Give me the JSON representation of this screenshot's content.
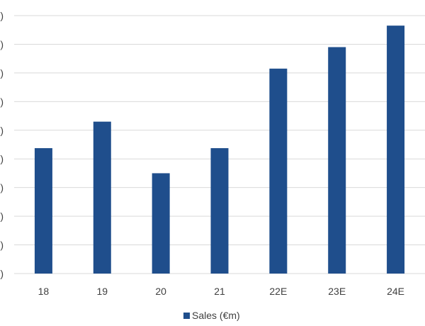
{
  "chart_data": {
    "type": "bar",
    "categories": [
      "18",
      "19",
      "20",
      "21",
      "22E",
      "23E",
      "24E"
    ],
    "series": [
      {
        "name": "Sales (€m)",
        "values": [
          17.5,
          21.2,
          14.0,
          17.5,
          28.6,
          31.6,
          34.6
        ]
      }
    ],
    "ylim": [
      0,
      36
    ],
    "y_ticks": [
      0,
      4,
      8,
      12,
      16,
      20,
      24,
      28,
      32,
      36
    ],
    "y_tick_labels": [
      ")",
      ")",
      ")",
      ")",
      ")",
      ")",
      ")",
      ")",
      ")",
      ")"
    ],
    "grid": true,
    "legend_position": "bottom",
    "colors": {
      "bar": "#1f4e8c",
      "grid": "#d9d9d9",
      "text": "#404040"
    }
  }
}
